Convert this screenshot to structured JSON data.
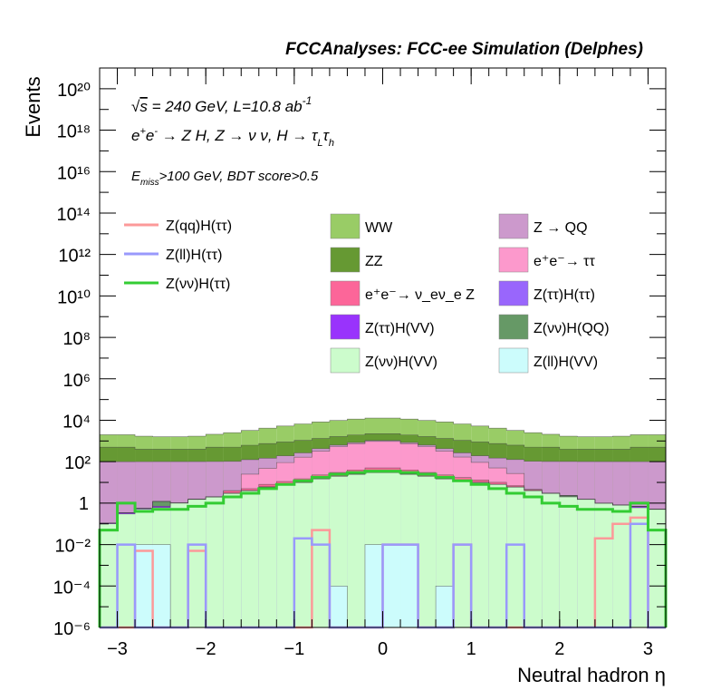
{
  "header": {
    "title": "FCCAnalyses: FCC-ee Simulation (Delphes)"
  },
  "annotations": {
    "energy_line": "√s = 240 GeV, L=10.8 ab⁻¹",
    "process_line": "e⁺e⁻ → Z H, Z → νν, H → τ_L τ_h",
    "selection_line": "E_miss>100 GeV, BDT score>0.5"
  },
  "chart_data": {
    "type": "histogram",
    "title": "FCCAnalyses: FCC-ee Simulation (Delphes)",
    "xlabel": "Neutral hadron η",
    "ylabel": "Events",
    "x_range": [
      -3.2,
      3.2
    ],
    "y_scale": "log",
    "y_range": [
      1e-06,
      1e+21
    ],
    "x_ticks": [
      "−3",
      "−2",
      "−1",
      "0",
      "1",
      "2",
      "3"
    ],
    "y_ticks": [
      "10⁻⁶",
      "10⁻⁴",
      "10⁻²",
      "1",
      "10²",
      "10⁴",
      "10⁶",
      "10⁸",
      "10¹⁰",
      "10¹²",
      "10¹⁴",
      "10¹⁶",
      "10¹⁸",
      "10²⁰"
    ],
    "bin_edges": [
      -3.2,
      -3.0,
      -2.8,
      -2.6,
      -2.4,
      -2.2,
      -2.0,
      -1.8,
      -1.6,
      -1.4,
      -1.2,
      -1.0,
      -0.8,
      -0.6,
      -0.4,
      -0.2,
      0.0,
      0.2,
      0.4,
      0.6,
      0.8,
      1.0,
      1.2,
      1.4,
      1.6,
      1.8,
      2.0,
      2.2,
      2.4,
      2.6,
      2.8,
      3.0,
      3.2
    ],
    "stack": [
      {
        "name": "Z(ll)H(VV)",
        "color": "#ccfcfc",
        "values": [
          1e-06,
          1e-06,
          0.01,
          0.01,
          1e-06,
          1e-06,
          1e-06,
          1e-06,
          1e-06,
          1e-06,
          1e-06,
          1e-06,
          1e-06,
          0.0001,
          1e-06,
          0.01,
          0.01,
          0.01,
          1e-06,
          0.0001,
          1e-06,
          1e-06,
          1e-06,
          1e-06,
          1e-06,
          1e-06,
          1e-06,
          1e-06,
          1e-06,
          1e-06,
          1e-06,
          1e-06
        ]
      },
      {
        "name": "Z(νν)H(VV)",
        "color": "#ccfccc",
        "values": [
          0.1,
          0.3,
          0.5,
          0.6,
          1,
          1.5,
          2,
          3,
          4,
          6,
          8,
          10,
          15,
          20,
          25,
          30,
          30,
          25,
          20,
          15,
          12,
          10,
          8,
          6,
          4,
          3,
          2,
          1.5,
          1,
          0.8,
          0.6,
          0.5
        ]
      },
      {
        "name": "Z(ττ)H(VV)",
        "color": "#9933fc",
        "values": [
          0.01,
          0.05,
          0.05,
          0.1,
          0.02,
          0.05,
          0.01,
          1e-06,
          0.01,
          0.01,
          0.02,
          0.03,
          0.01,
          0.05,
          0.05,
          0.05,
          0.05,
          0.05,
          0.05,
          0.05,
          0.05,
          0.02,
          0.05,
          0.05,
          0.05,
          0.02,
          0.03,
          0.02,
          0.01,
          0.02,
          0.1,
          0.01
        ]
      },
      {
        "name": "Z(νν)H(QQ)",
        "color": "#669966",
        "values": [
          1e-06,
          1e-06,
          1e-06,
          0.5,
          1e-06,
          1e-06,
          1e-06,
          1e-06,
          1e-06,
          1e-06,
          1e-06,
          1e-06,
          1e-06,
          1e-06,
          1e-06,
          1e-06,
          1e-06,
          1e-06,
          1e-06,
          1e-06,
          1e-06,
          1e-06,
          1e-06,
          1e-06,
          1e-06,
          1e-06,
          0.3,
          1e-06,
          1e-06,
          1e-06,
          1e-06,
          1e-06
        ]
      },
      {
        "name": "Z(ττ)H(ττ)",
        "color": "#9966fc",
        "values": [
          1e-06,
          1e-06,
          1e-06,
          1e-06,
          1e-06,
          1e-06,
          1e-06,
          1e-06,
          0.01,
          0.02,
          0.01,
          1e-06,
          0.02,
          0.03,
          0.05,
          0.05,
          0.05,
          0.03,
          0.02,
          1e-06,
          0.01,
          0.01,
          0.01,
          1e-06,
          1e-06,
          1e-06,
          1e-06,
          1e-06,
          1e-06,
          1e-06,
          1e-06,
          1e-06
        ]
      },
      {
        "name": "e⁺e⁻→ ν_eν_e Z",
        "color": "#fc6699",
        "values": [
          1e-06,
          1e-06,
          1e-06,
          1e-06,
          1e-06,
          1e-06,
          1e-06,
          1,
          1,
          2,
          3,
          5,
          8,
          10,
          15,
          20,
          20,
          15,
          10,
          8,
          5,
          3,
          2,
          1,
          0.5,
          1e-06,
          1e-06,
          1e-06,
          1e-06,
          1e-06,
          1e-06,
          1e-06
        ]
      },
      {
        "name": "e⁺e⁻→ ττ",
        "color": "#fc99cc",
        "values": [
          1e-06,
          1e-06,
          1e-06,
          1e-06,
          1e-06,
          1e-06,
          1e-06,
          1e-06,
          20,
          40,
          80,
          150,
          300,
          500,
          700,
          900,
          900,
          700,
          500,
          300,
          150,
          80,
          40,
          20,
          1e-06,
          1e-06,
          1e-06,
          1e-06,
          1e-06,
          1e-06,
          1e-06,
          1e-06
        ]
      },
      {
        "name": "Z → QQ",
        "color": "#cc99cc",
        "values": [
          100,
          100,
          100,
          100,
          100,
          100,
          100,
          100,
          100,
          100,
          100,
          100,
          100,
          100,
          100,
          100,
          100,
          100,
          100,
          100,
          100,
          100,
          100,
          100,
          100,
          100,
          100,
          100,
          100,
          100,
          100,
          100
        ]
      },
      {
        "name": "ZZ",
        "color": "#669933",
        "values": [
          400,
          400,
          300,
          300,
          300,
          300,
          400,
          400,
          500,
          600,
          700,
          800,
          900,
          1000,
          1100,
          1200,
          1200,
          1100,
          1000,
          900,
          800,
          700,
          600,
          500,
          400,
          400,
          300,
          300,
          300,
          300,
          400,
          400
        ]
      },
      {
        "name": "WW",
        "color": "#99cc66",
        "values": [
          1500,
          1500,
          1300,
          1200,
          1200,
          1300,
          1600,
          2000,
          2600,
          3400,
          4400,
          5600,
          7000,
          8200,
          9500,
          10500,
          10500,
          9500,
          8200,
          7000,
          5600,
          4400,
          3400,
          2600,
          2000,
          1600,
          1300,
          1200,
          1200,
          1300,
          1500,
          1500
        ]
      }
    ],
    "signals": [
      {
        "name": "Z(qq)H(ττ)",
        "color": "#fc9999",
        "values": [
          1e-06,
          1e-06,
          0.005,
          1e-06,
          1e-06,
          0.005,
          1e-06,
          1e-06,
          1e-06,
          1e-06,
          1e-06,
          1e-06,
          0.05,
          1e-06,
          1e-06,
          1e-06,
          0.01,
          0.01,
          1e-06,
          1e-06,
          0.01,
          1e-06,
          1e-06,
          1e-06,
          1e-06,
          1e-06,
          1e-06,
          1e-06,
          0.02,
          0.1,
          0.2,
          1e-06
        ]
      },
      {
        "name": "Z(ll)H(ττ)",
        "color": "#9999fc",
        "values": [
          1e-06,
          0.01,
          1e-06,
          1e-06,
          1e-06,
          0.01,
          1e-06,
          1e-06,
          1e-06,
          1e-06,
          1e-06,
          0.02,
          0.01,
          1e-06,
          1e-06,
          1e-06,
          0.01,
          0.01,
          1e-06,
          1e-06,
          0.01,
          1e-06,
          1e-06,
          0.01,
          1e-06,
          1e-06,
          1e-06,
          1e-06,
          1e-06,
          1e-06,
          0.1,
          1e-06
        ]
      },
      {
        "name": "Z(νν)H(ττ)",
        "color": "#33cc33",
        "values": [
          0.05,
          1,
          0.4,
          0.5,
          0.5,
          0.7,
          1,
          2,
          3,
          5,
          8,
          12,
          18,
          25,
          30,
          35,
          35,
          30,
          25,
          18,
          12,
          8,
          5,
          3,
          2,
          1,
          0.7,
          0.5,
          0.5,
          0.4,
          1,
          0.05
        ]
      }
    ],
    "legend": {
      "lines": [
        "Z(qq)H(ττ)",
        "Z(ll)H(ττ)",
        "Z(νν)H(ττ)"
      ],
      "boxes": [
        "WW",
        "Z → QQ",
        "ZZ",
        "e⁺e⁻→ ττ",
        "e⁺e⁻→ ν_eν_e Z",
        "Z(ττ)H(ττ)",
        "Z(ττ)H(VV)",
        "Z(νν)H(QQ)",
        "Z(νν)H(VV)",
        "Z(ll)H(VV)"
      ]
    }
  }
}
